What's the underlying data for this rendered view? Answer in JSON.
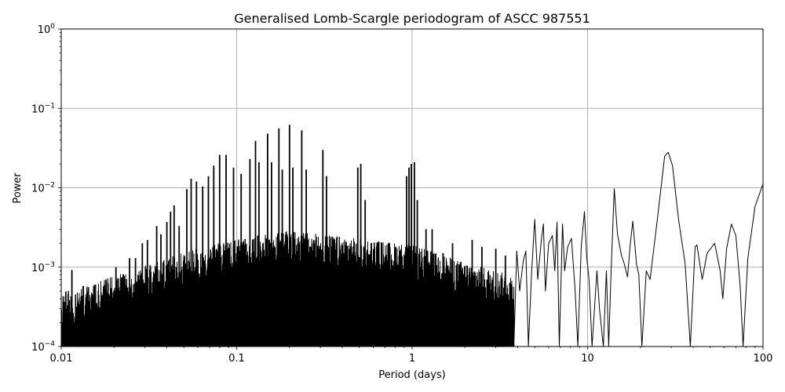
{
  "chart_data": {
    "type": "line",
    "title": "Generalised Lomb-Scargle periodogram of ASCC 987551",
    "xlabel": "Period (days)",
    "ylabel": "Power",
    "xscale": "log",
    "yscale": "log",
    "xlim": [
      0.01,
      100
    ],
    "ylim": [
      0.0001,
      1
    ],
    "grid": true,
    "legend": null,
    "line_color": "#000000",
    "grid_color": "#b0b0b0",
    "x_ticks": [
      {
        "value": 0.01,
        "label": "0.01"
      },
      {
        "value": 0.1,
        "label": "0.1"
      },
      {
        "value": 1,
        "label": "1"
      },
      {
        "value": 10,
        "label": "10"
      },
      {
        "value": 100,
        "label": "100"
      }
    ],
    "y_ticks": [
      {
        "value": 0.0001,
        "base": "10",
        "exp": "−4"
      },
      {
        "value": 0.001,
        "base": "10",
        "exp": "−3"
      },
      {
        "value": 0.01,
        "base": "10",
        "exp": "−2"
      },
      {
        "value": 0.1,
        "base": "10",
        "exp": "−1"
      },
      {
        "value": 1,
        "base": "10",
        "exp": "0"
      }
    ],
    "noise_floor": {
      "description": "dense aliasing forest below ~4 days; envelope of background power",
      "points": [
        [
          0.01,
          0.00025
        ],
        [
          0.02,
          0.0004
        ],
        [
          0.05,
          0.0008
        ],
        [
          0.1,
          0.0012
        ],
        [
          0.2,
          0.0015
        ],
        [
          0.5,
          0.0012
        ],
        [
          1,
          0.001
        ],
        [
          2,
          0.0006
        ],
        [
          4,
          0.0004
        ]
      ]
    },
    "spike_peaks": [
      [
        0.0115,
        0.00092
      ],
      [
        0.0155,
        0.0006
      ],
      [
        0.018,
        0.0007
      ],
      [
        0.0205,
        0.001
      ],
      [
        0.0245,
        0.0013
      ],
      [
        0.0265,
        0.0013
      ],
      [
        0.029,
        0.002
      ],
      [
        0.031,
        0.0022
      ],
      [
        0.035,
        0.0033
      ],
      [
        0.037,
        0.0026
      ],
      [
        0.04,
        0.0037
      ],
      [
        0.042,
        0.005
      ],
      [
        0.044,
        0.006
      ],
      [
        0.047,
        0.0033
      ],
      [
        0.052,
        0.0096
      ],
      [
        0.055,
        0.013
      ],
      [
        0.059,
        0.012
      ],
      [
        0.064,
        0.0104
      ],
      [
        0.069,
        0.014
      ],
      [
        0.074,
        0.019
      ],
      [
        0.08,
        0.026
      ],
      [
        0.087,
        0.026
      ],
      [
        0.096,
        0.018
      ],
      [
        0.106,
        0.015
      ],
      [
        0.119,
        0.023
      ],
      [
        0.128,
        0.039
      ],
      [
        0.134,
        0.021
      ],
      [
        0.15,
        0.048
      ],
      [
        0.158,
        0.021
      ],
      [
        0.174,
        0.056
      ],
      [
        0.182,
        0.017
      ],
      [
        0.2,
        0.062
      ],
      [
        0.209,
        0.018
      ],
      [
        0.235,
        0.053
      ],
      [
        0.249,
        0.017
      ],
      [
        0.31,
        0.03
      ],
      [
        0.325,
        0.014
      ],
      [
        0.49,
        0.018
      ],
      [
        0.51,
        0.02
      ],
      [
        0.54,
        0.007
      ],
      [
        0.93,
        0.014
      ],
      [
        0.96,
        0.018
      ],
      [
        0.99,
        0.02
      ],
      [
        1.03,
        0.021
      ],
      [
        1.07,
        0.007
      ],
      [
        1.2,
        0.003
      ],
      [
        1.3,
        0.003
      ],
      [
        1.5,
        0.0015
      ],
      [
        1.7,
        0.002
      ],
      [
        2.2,
        0.0022
      ],
      [
        2.5,
        0.0018
      ],
      [
        3.0,
        0.0017
      ],
      [
        3.4,
        0.0014
      ]
    ],
    "smooth_curve": [
      [
        3.8,
        0.0001
      ],
      [
        3.95,
        0.0016
      ],
      [
        4.1,
        0.0005
      ],
      [
        4.3,
        0.0012
      ],
      [
        4.45,
        0.0016
      ],
      [
        4.6,
        0.0001
      ],
      [
        4.8,
        0.0009
      ],
      [
        5.0,
        0.004
      ],
      [
        5.2,
        0.0007
      ],
      [
        5.45,
        0.0022
      ],
      [
        5.6,
        0.0035
      ],
      [
        5.75,
        0.0005
      ],
      [
        6.0,
        0.002
      ],
      [
        6.3,
        0.0025
      ],
      [
        6.5,
        0.0009
      ],
      [
        6.7,
        0.0037
      ],
      [
        6.9,
        0.0001
      ],
      [
        7.2,
        0.0035
      ],
      [
        7.4,
        0.0009
      ],
      [
        7.7,
        0.0018
      ],
      [
        8.1,
        0.0023
      ],
      [
        8.5,
        0.0005
      ],
      [
        8.8,
        0.0001
      ],
      [
        9.2,
        0.0018
      ],
      [
        9.6,
        0.005
      ],
      [
        9.9,
        0.0013
      ],
      [
        10.2,
        0.0007
      ],
      [
        10.6,
        0.0001
      ],
      [
        11.3,
        0.0009
      ],
      [
        11.7,
        0.0003
      ],
      [
        12.3,
        0.0001
      ],
      [
        12.8,
        0.0009
      ],
      [
        13.2,
        0.0001
      ],
      [
        13.6,
        0.0008
      ],
      [
        14.2,
        0.0097
      ],
      [
        14.8,
        0.0026
      ],
      [
        15.6,
        0.0014
      ],
      [
        16.2,
        0.0011
      ],
      [
        16.9,
        0.00075
      ],
      [
        17.5,
        0.0019
      ],
      [
        18.1,
        0.0038
      ],
      [
        19.0,
        0.0011
      ],
      [
        19.6,
        0.0008
      ],
      [
        20.4,
        0.0001
      ],
      [
        21.6,
        0.0009
      ],
      [
        22.7,
        0.0007
      ],
      [
        25.0,
        0.004
      ],
      [
        27.5,
        0.025
      ],
      [
        28.8,
        0.028
      ],
      [
        30.5,
        0.019
      ],
      [
        33.0,
        0.004
      ],
      [
        36.0,
        0.0011
      ],
      [
        38.5,
        0.0001
      ],
      [
        41.0,
        0.0018
      ],
      [
        42.0,
        0.0019
      ],
      [
        45.0,
        0.0007
      ],
      [
        48.0,
        0.0015
      ],
      [
        53.0,
        0.002
      ],
      [
        57.0,
        0.0009
      ],
      [
        59.0,
        0.0004
      ],
      [
        62.0,
        0.0017
      ],
      [
        66.0,
        0.0035
      ],
      [
        70.0,
        0.0025
      ],
      [
        74.0,
        0.0006
      ],
      [
        77.0,
        0.0001
      ],
      [
        82.0,
        0.0013
      ],
      [
        90.0,
        0.0058
      ],
      [
        100.0,
        0.0112
      ]
    ]
  }
}
